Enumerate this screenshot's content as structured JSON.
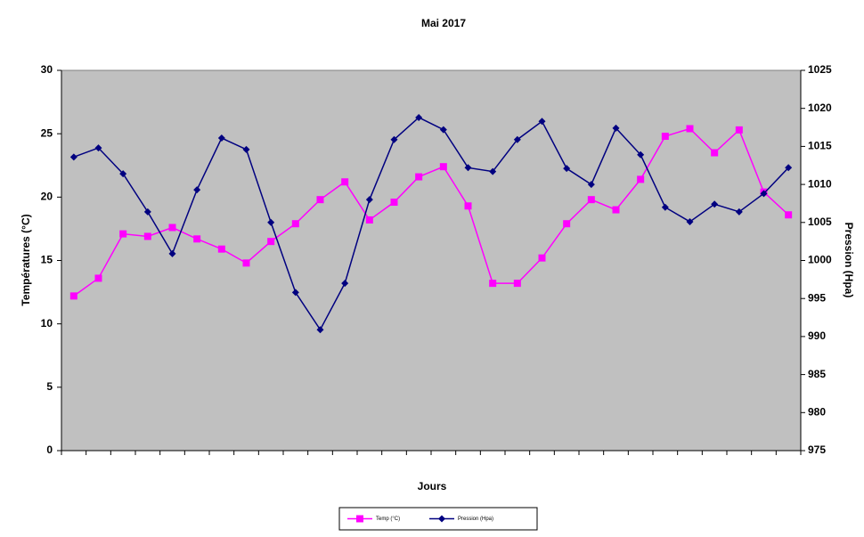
{
  "chart_data": {
    "type": "line",
    "title": "Mai 2017",
    "x_label": "Jours",
    "y_label": "Températures (°C)",
    "y2_label": "Pression (Hpa)",
    "categories": [
      null,
      null,
      null,
      null,
      null,
      null,
      null,
      null,
      null,
      null,
      null,
      null,
      null,
      null,
      null,
      null,
      null,
      null,
      null,
      null,
      null,
      null,
      null,
      null,
      null,
      null,
      null,
      null,
      null,
      null
    ],
    "ylim": [
      0,
      30
    ],
    "yticks": [
      0,
      5,
      10,
      15,
      20,
      25,
      30
    ],
    "y2lim": [
      975,
      1025
    ],
    "y2ticks": [
      975,
      980,
      985,
      990,
      995,
      1000,
      1005,
      1010,
      1015,
      1020,
      1025
    ],
    "background": "#c0c0c0",
    "legend": "bottom",
    "series": [
      {
        "name": "Temp (°C)",
        "color": "#ff00ff",
        "marker": "square",
        "values": [
          12.2,
          13.6,
          17.1,
          16.9,
          17.6,
          16.7,
          15.9,
          14.8,
          16.5,
          17.9,
          19.8,
          21.2,
          18.2,
          19.6,
          21.6,
          22.4,
          19.3,
          13.2,
          13.2,
          15.2,
          17.9,
          19.8,
          19.0,
          21.4,
          24.8,
          25.4,
          23.5,
          25.3,
          20.4,
          18.6
        ]
      },
      {
        "name": "Pression (Hpa)",
        "color": "#000080",
        "marker": "diamond",
        "axis": "y2",
        "values": [
          1013.6,
          1014.8,
          1011.4,
          1006.4,
          1000.9,
          1009.3,
          1016.1,
          1014.6,
          1005.0,
          995.8,
          990.9,
          997.0,
          1008.0,
          1015.9,
          1018.8,
          1017.2,
          1012.2,
          1011.7,
          1015.9,
          1018.3,
          1012.1,
          1010.0,
          1017.4,
          1013.9,
          1007.0,
          1005.1,
          1007.4,
          1006.4,
          1008.8,
          1012.2
        ]
      }
    ]
  }
}
